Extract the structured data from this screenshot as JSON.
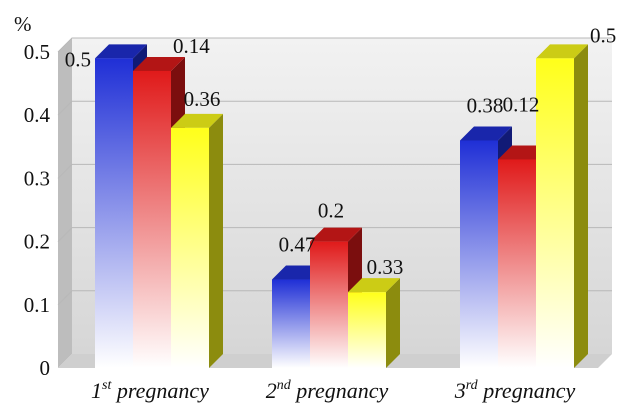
{
  "chart_data": {
    "type": "bar",
    "three_d": true,
    "ylabel": "%",
    "ylim": [
      0,
      0.5
    ],
    "yticks": [
      "0",
      "0.1",
      "0.2",
      "0.3",
      "0.4",
      "0.5"
    ],
    "categories": [
      {
        "ord": "1",
        "sup": "st",
        "rest": " pregnancy"
      },
      {
        "ord": "2",
        "sup": "nd",
        "rest": " pregnancy"
      },
      {
        "ord": "3",
        "sup": "rd",
        "rest": " pregnancy"
      }
    ],
    "series": [
      {
        "color": "#1f2fd6",
        "values": [
          0.49,
          0.14,
          0.36
        ],
        "labels": [
          "0.5",
          "0.47",
          "0.38"
        ]
      },
      {
        "color": "#e01a1a",
        "values": [
          0.47,
          0.2,
          0.33
        ],
        "labels": [
          "0.14",
          "0.2",
          "0.12"
        ]
      },
      {
        "color": "#ffff1a",
        "values": [
          0.38,
          0.12,
          0.49
        ],
        "labels": [
          "0.36",
          "0.33",
          "0.5"
        ]
      }
    ],
    "grid": true,
    "legend": "none"
  }
}
